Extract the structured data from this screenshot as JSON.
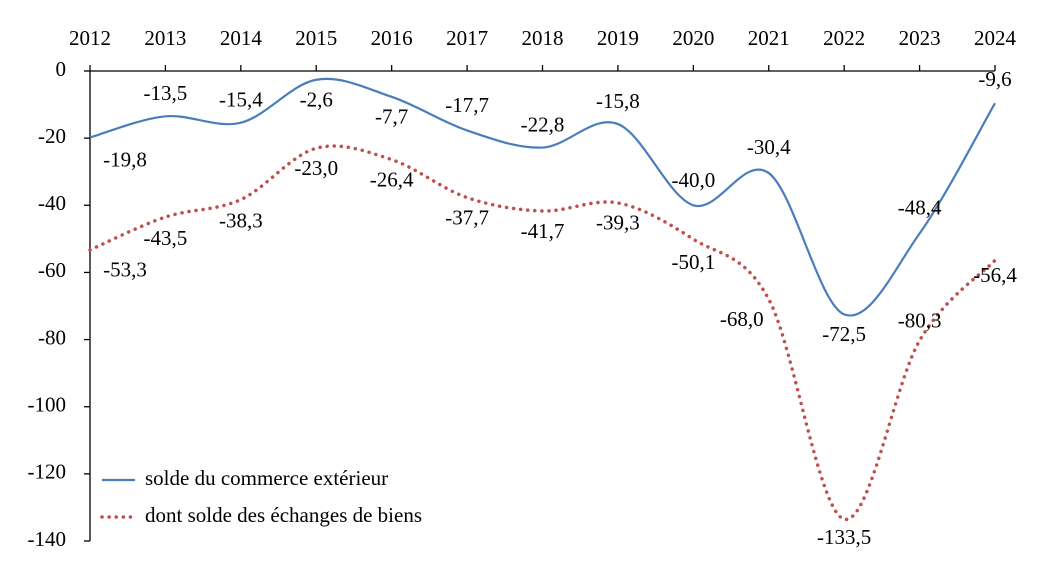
{
  "chart_data": {
    "type": "line",
    "categories": [
      "2012",
      "2013",
      "2014",
      "2015",
      "2016",
      "2017",
      "2018",
      "2019",
      "2020",
      "2021",
      "2022",
      "2023",
      "2024"
    ],
    "series": [
      {
        "name": "solde du commerce extérieur",
        "color": "#4a7ebb",
        "dash": "solid",
        "values": [
          -19.8,
          -13.5,
          -15.4,
          -2.6,
          -7.7,
          -17.7,
          -22.8,
          -15.8,
          -40.0,
          -30.4,
          -72.5,
          -48.4,
          -9.6
        ],
        "value_labels": [
          "-19,8",
          "-13,5",
          "-15,4",
          "-2,6",
          "-7,7",
          "-17,7",
          "-22,8",
          "-15,8",
          "-40,0",
          "-30,4",
          "-72,5",
          "-48,4",
          "-9,6"
        ]
      },
      {
        "name": "dont solde des échanges de biens",
        "color": "#c0504d",
        "dash": "dotted",
        "values": [
          -53.3,
          -43.5,
          -38.3,
          -23.0,
          -26.4,
          -37.7,
          -41.7,
          -39.3,
          -50.1,
          -68.0,
          -133.5,
          -80.3,
          -56.4
        ],
        "value_labels": [
          "-53,3",
          "-43,5",
          "-38,3",
          "-23,0",
          "-26,4",
          "-37,7",
          "-41,7",
          "-39,3",
          "-50,1",
          "-68,0",
          "-133,5",
          "-80,3",
          "-56,4"
        ]
      }
    ],
    "ylim": [
      -140,
      0
    ],
    "yticks": [
      0,
      -20,
      -40,
      -60,
      -80,
      -100,
      -120,
      -140
    ],
    "legend": "lower left"
  }
}
